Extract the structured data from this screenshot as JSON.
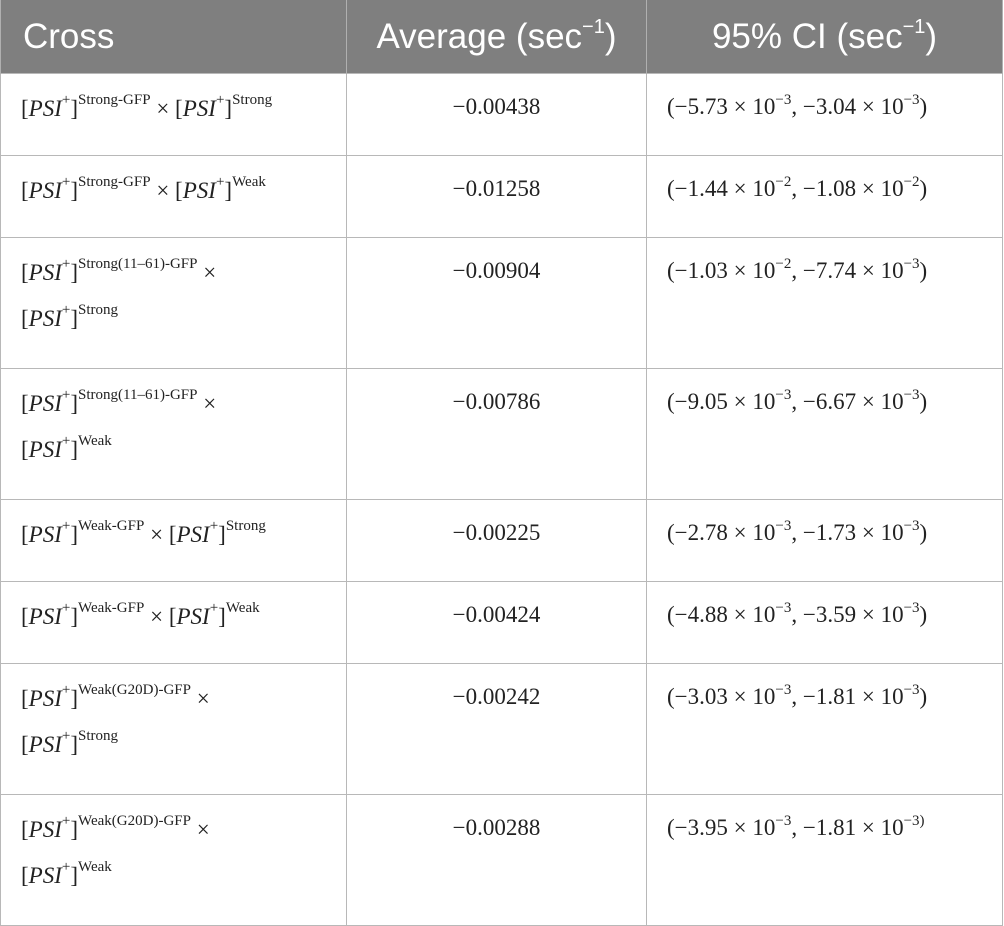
{
  "headers": {
    "cross": "Cross",
    "average": "Average (sec",
    "average_exp": "−1",
    "average_close": ")",
    "ci": "95% CI (sec",
    "ci_exp": "−1",
    "ci_close": ")"
  },
  "rows": [
    {
      "cross_a_strain": "Strong-GFP",
      "cross_b_strain": "Strong",
      "average": "−0.00438",
      "ci_lo_mant": "−5.73",
      "ci_lo_exp": "−3",
      "ci_hi_mant": "−3.04",
      "ci_hi_exp": "−3"
    },
    {
      "cross_a_strain": "Strong-GFP",
      "cross_b_strain": "Weak",
      "average": "−0.01258",
      "ci_lo_mant": "−1.44",
      "ci_lo_exp": "−2",
      "ci_hi_mant": "−1.08",
      "ci_hi_exp": "−2"
    },
    {
      "cross_a_strain": "Strong(11–61)-GFP",
      "cross_b_strain": "Strong",
      "average": "−0.00904",
      "ci_lo_mant": "−1.03",
      "ci_lo_exp": "−2",
      "ci_hi_mant": "−7.74",
      "ci_hi_exp": "−3"
    },
    {
      "cross_a_strain": "Strong(11–61)-GFP",
      "cross_b_strain": "Weak",
      "average": "−0.00786",
      "ci_lo_mant": "−9.05",
      "ci_lo_exp": "−3",
      "ci_hi_mant": "−6.67",
      "ci_hi_exp": "−3"
    },
    {
      "cross_a_strain": "Weak-GFP",
      "cross_b_strain": "Strong",
      "average": "−0.00225",
      "ci_lo_mant": "−2.78",
      "ci_lo_exp": "−3",
      "ci_hi_mant": "−1.73",
      "ci_hi_exp": "−3"
    },
    {
      "cross_a_strain": "Weak-GFP",
      "cross_b_strain": "Weak",
      "average": "−0.00424",
      "ci_lo_mant": "−4.88",
      "ci_lo_exp": "−3",
      "ci_hi_mant": "−3.59",
      "ci_hi_exp": "−3"
    },
    {
      "cross_a_strain": "Weak(G20D)-GFP",
      "cross_b_strain": "Strong",
      "average": "−0.00242",
      "ci_lo_mant": "−3.03",
      "ci_lo_exp": "−3",
      "ci_hi_mant": "−1.81",
      "ci_hi_exp": "−3"
    },
    {
      "cross_a_strain": "Weak(G20D)-GFP",
      "cross_b_strain": "Weak",
      "average": "−0.00288",
      "ci_lo_mant": "−3.95",
      "ci_lo_exp": "−3",
      "ci_hi_mant": "−1.81",
      "ci_hi_exp": "−3)"
    }
  ],
  "symbols": {
    "psi": "PSI",
    "plus": "+",
    "times": "×",
    "ten": "10",
    "open_paren": "(",
    "comma": ",",
    "close_paren": ")",
    "lbracket": "[",
    "rbracket": "]"
  }
}
